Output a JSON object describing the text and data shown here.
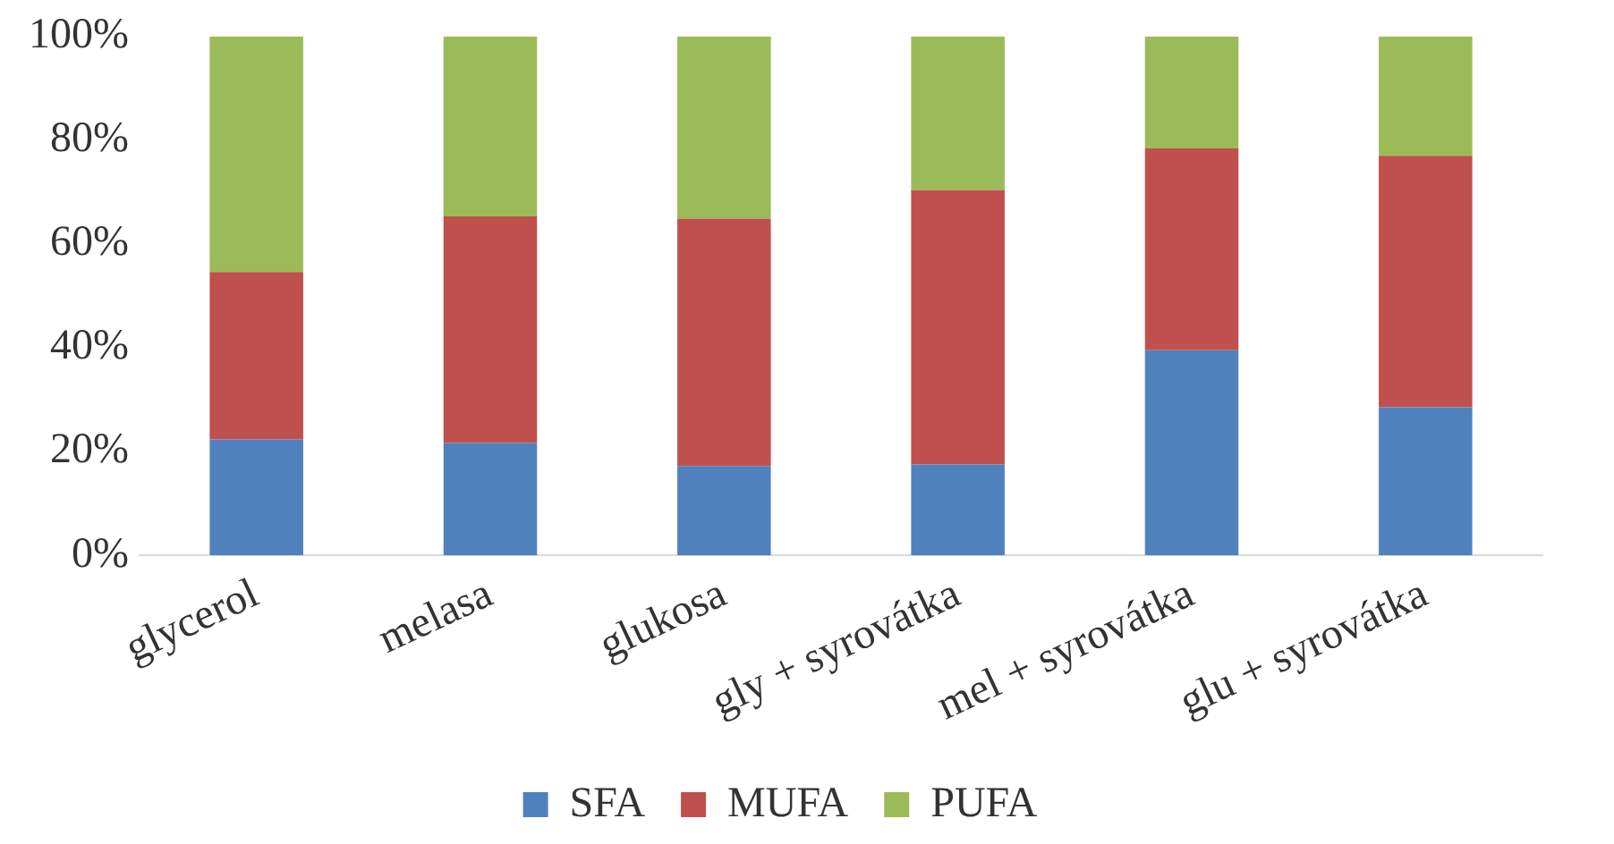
{
  "chart_data": {
    "type": "bar",
    "stacked": true,
    "categories": [
      "glycerol",
      "melasa",
      "glukosa",
      "gly + syrovátka",
      "mel + syrovátka",
      "glu + syrovátka"
    ],
    "series": [
      {
        "name": "SFA",
        "color": "#4f81bd",
        "values": [
          22.3,
          21.6,
          17.2,
          17.5,
          39.5,
          28.5
        ]
      },
      {
        "name": "MUFA",
        "color": "#c0504d",
        "values": [
          32.3,
          43.7,
          47.7,
          52.9,
          38.9,
          48.5
        ]
      },
      {
        "name": "PUFA",
        "color": "#9bbb59",
        "values": [
          45.4,
          34.7,
          35.1,
          29.6,
          21.6,
          23.0
        ]
      }
    ],
    "ylim": [
      0,
      100
    ],
    "yticks": [
      {
        "value": 0,
        "label": "0%"
      },
      {
        "value": 20,
        "label": "20%"
      },
      {
        "value": 40,
        "label": "40%"
      },
      {
        "value": 60,
        "label": "60%"
      },
      {
        "value": 80,
        "label": "80%"
      },
      {
        "value": 100,
        "label": "100%"
      }
    ],
    "grid": false,
    "legend": "bottom"
  }
}
